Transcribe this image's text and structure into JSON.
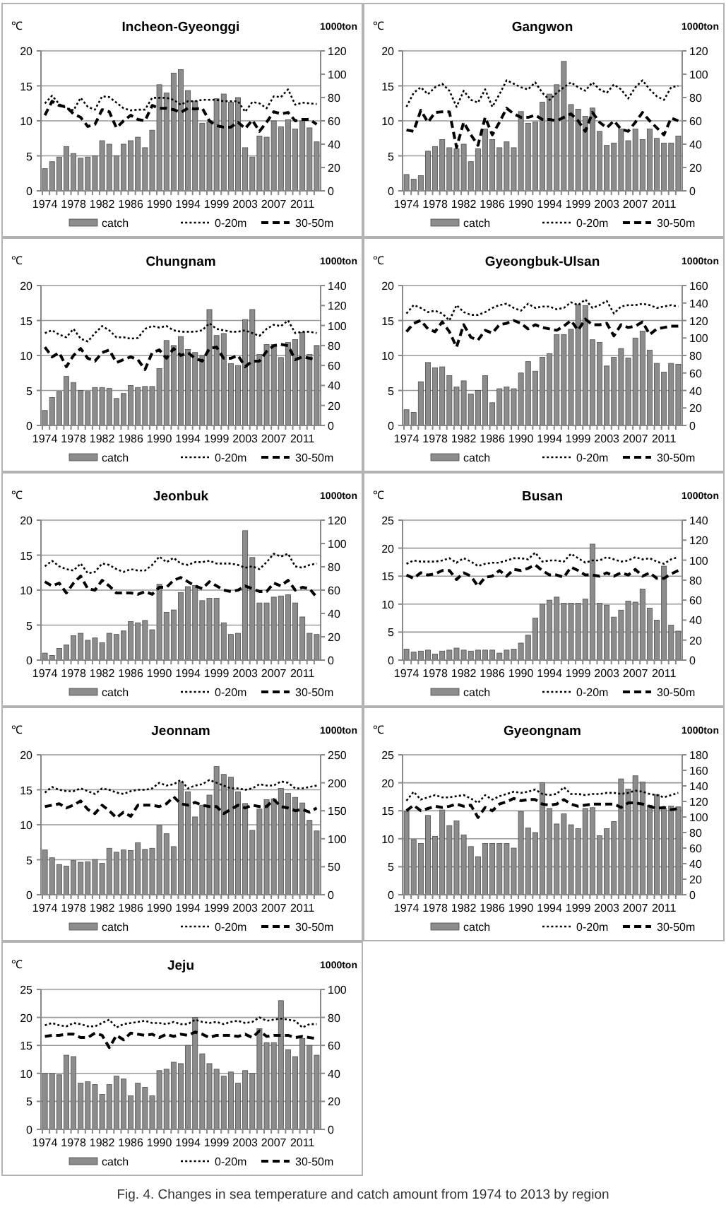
{
  "chart_data": [
    {
      "type": "bar",
      "title": "Incheon-Gyeonggi",
      "ylabel": "℃",
      "y2label": "1000ton",
      "categories": [
        "1974",
        null,
        null,
        null,
        "1978",
        null,
        null,
        null,
        "1982",
        null,
        null,
        null,
        "1986",
        null,
        null,
        null,
        "1990",
        null,
        null,
        null,
        "1994",
        null,
        null,
        null,
        "1999",
        null,
        null,
        null,
        "2003",
        null,
        null,
        null,
        "2007",
        null,
        null,
        null,
        "2011",
        null,
        null
      ],
      "ylim": [
        0,
        20
      ],
      "yticks": [
        0,
        5,
        10,
        15,
        20
      ],
      "y2lim": [
        0,
        120
      ],
      "y2ticks": [
        0,
        20,
        40,
        60,
        80,
        100,
        120
      ],
      "grid": "y",
      "legend": "bottom",
      "series": [
        {
          "name": "catch",
          "axis": "y2",
          "color": "#8c8c8c",
          "values": [
            19,
            25,
            29,
            38,
            32,
            28,
            29,
            30,
            43,
            40,
            30,
            40,
            43,
            46,
            37,
            52,
            91,
            84,
            101,
            104,
            86,
            77,
            58,
            59,
            79,
            83,
            76,
            80,
            37,
            29,
            47,
            46,
            60,
            55,
            61,
            53,
            60,
            54,
            42
          ]
        },
        {
          "name": "0-20m",
          "type": "line",
          "line_style": "dotted",
          "color": "#000000",
          "values": [
            12.5,
            13.6,
            12.4,
            11.8,
            11.5,
            13.3,
            12.0,
            11.6,
            13.5,
            13.4,
            12.6,
            11.8,
            11.5,
            11.6,
            11.6,
            13.3,
            13.3,
            13.3,
            13.0,
            12.3,
            12.8,
            12.8,
            13.0,
            13.0,
            13.0,
            12.8,
            12.8,
            12.8,
            11.3,
            12.7,
            12.5,
            11.8,
            13.5,
            13.4,
            14.5,
            12.3,
            12.6,
            12.5,
            12.4
          ]
        },
        {
          "name": "30-50m",
          "type": "line",
          "line_style": "dashed",
          "color": "#000000",
          "values": [
            10.8,
            12.8,
            12.2,
            12.0,
            11.0,
            10.5,
            9.2,
            9.5,
            11.6,
            11.3,
            9.0,
            10.0,
            10.8,
            10.2,
            10.0,
            12.2,
            11.8,
            11.8,
            11.6,
            11.2,
            11.8,
            11.7,
            11.8,
            10.0,
            9.3,
            9.1,
            9.1,
            9.8,
            8.9,
            10.1,
            8.5,
            9.8,
            11.3,
            11.0,
            11.2,
            10.0,
            10.2,
            10.2,
            9.5
          ]
        }
      ]
    },
    {
      "type": "bar",
      "title": "Gangwon",
      "ylabel": "℃",
      "y2label": "1000ton",
      "categories": [
        "1974",
        null,
        null,
        null,
        "1978",
        null,
        null,
        null,
        "1982",
        null,
        null,
        null,
        "1986",
        null,
        null,
        null,
        "1990",
        null,
        null,
        null,
        "1994",
        null,
        null,
        null,
        "1999",
        null,
        null,
        null,
        "2003",
        null,
        null,
        null,
        "2007",
        null,
        null,
        null,
        "2011",
        null,
        null
      ],
      "ylim": [
        0,
        20
      ],
      "yticks": [
        0,
        5,
        10,
        15,
        20
      ],
      "y2lim": [
        0,
        120
      ],
      "y2ticks": [
        0,
        20,
        40,
        60,
        80,
        100,
        120
      ],
      "grid": "y",
      "legend": "bottom",
      "series": [
        {
          "name": "catch",
          "axis": "y2",
          "color": "#8c8c8c",
          "values": [
            14,
            10,
            13,
            34,
            38,
            44,
            37,
            36,
            40,
            25,
            36,
            53,
            44,
            37,
            42,
            37,
            68,
            58,
            59,
            76,
            83,
            91,
            111,
            74,
            70,
            64,
            71,
            51,
            39,
            41,
            53,
            43,
            53,
            44,
            53,
            45,
            41,
            41,
            47
          ]
        },
        {
          "name": "0-20m",
          "type": "line",
          "line_style": "dotted",
          "color": "#000000",
          "values": [
            12.0,
            14.0,
            14.8,
            13.8,
            14.8,
            15.3,
            14.3,
            12.0,
            14.3,
            13.0,
            12.6,
            14.5,
            12.0,
            13.8,
            15.8,
            15.3,
            14.8,
            14.5,
            15.5,
            14.0,
            13.0,
            14.0,
            14.8,
            15.5,
            14.8,
            14.3,
            15.5,
            14.5,
            14.0,
            15.2,
            14.5,
            13.2,
            14.8,
            15.8,
            14.5,
            13.5,
            13.0,
            14.8,
            15.0
          ]
        },
        {
          "name": "30-50m",
          "type": "line",
          "line_style": "dashed",
          "color": "#000000",
          "values": [
            8.7,
            8.5,
            11.5,
            9.8,
            11.2,
            11.3,
            11.3,
            6.2,
            9.8,
            8.0,
            6.5,
            10.5,
            8.0,
            9.8,
            11.8,
            11.0,
            10.5,
            10.5,
            10.8,
            10.2,
            10.2,
            10.0,
            10.5,
            11.0,
            10.0,
            8.5,
            11.2,
            9.8,
            9.0,
            10.0,
            8.8,
            8.5,
            9.8,
            11.2,
            10.0,
            9.0,
            8.0,
            10.4,
            10.0
          ]
        }
      ]
    },
    {
      "type": "bar",
      "title": "Chungnam",
      "ylabel": "℃",
      "y2label": "1000ton",
      "categories": [
        "1974",
        null,
        null,
        null,
        "1978",
        null,
        null,
        null,
        "1982",
        null,
        null,
        null,
        "1986",
        null,
        null,
        null,
        "1990",
        null,
        null,
        null,
        "1994",
        null,
        null,
        null,
        "1999",
        null,
        null,
        null,
        "2003",
        null,
        null,
        null,
        "2007",
        null,
        null,
        null,
        "2011",
        null,
        null
      ],
      "ylim": [
        0,
        20
      ],
      "yticks": [
        0,
        5,
        10,
        15,
        20
      ],
      "y2lim": [
        0,
        140
      ],
      "y2ticks": [
        0,
        20,
        40,
        60,
        80,
        100,
        120,
        140
      ],
      "grid": "y",
      "legend": "bottom",
      "series": [
        {
          "name": "catch",
          "axis": "y2",
          "color": "#8c8c8c",
          "values": [
            15,
            28,
            34,
            49,
            43,
            35,
            34,
            38,
            38,
            37,
            27,
            32,
            40,
            38,
            39,
            39,
            57,
            85,
            80,
            89,
            76,
            73,
            70,
            116,
            90,
            92,
            62,
            60,
            106,
            116,
            71,
            81,
            81,
            68,
            83,
            86,
            93,
            71,
            80
          ]
        },
        {
          "name": "0-20m",
          "type": "line",
          "line_style": "dotted",
          "color": "#000000",
          "values": [
            13.2,
            13.6,
            13.0,
            12.6,
            13.8,
            12.4,
            12.0,
            13.2,
            14.2,
            13.6,
            12.6,
            12.6,
            12.4,
            12.5,
            13.8,
            14.2,
            14.0,
            14.2,
            13.6,
            13.4,
            13.4,
            13.4,
            13.6,
            14.6,
            13.8,
            13.6,
            13.4,
            13.4,
            13.6,
            13.2,
            12.8,
            13.8,
            14.4,
            14.2,
            15.0,
            13.2,
            13.4,
            13.4,
            13.2
          ]
        },
        {
          "name": "30-50m",
          "type": "line",
          "line_style": "dashed",
          "color": "#000000",
          "values": [
            11.2,
            9.8,
            10.4,
            8.4,
            10.0,
            11.0,
            9.6,
            9.2,
            10.4,
            10.8,
            9.0,
            9.4,
            9.8,
            9.4,
            8.0,
            10.4,
            10.8,
            9.6,
            11.0,
            10.0,
            10.4,
            9.6,
            9.2,
            11.0,
            11.2,
            9.6,
            9.6,
            10.0,
            8.4,
            9.2,
            9.2,
            10.6,
            11.4,
            11.6,
            11.4,
            9.4,
            9.8,
            9.6,
            9.4
          ]
        }
      ]
    },
    {
      "type": "bar",
      "title": "Gyeongbuk-Ulsan",
      "ylabel": "℃",
      "y2label": "1000ton",
      "categories": [
        "1974",
        null,
        null,
        null,
        "1978",
        null,
        null,
        null,
        "1982",
        null,
        null,
        null,
        "1986",
        null,
        null,
        null,
        "1990",
        null,
        null,
        null,
        "1994",
        null,
        null,
        null,
        "1999",
        null,
        null,
        null,
        "2003",
        null,
        null,
        null,
        "2007",
        null,
        null,
        null,
        "2011",
        null,
        null
      ],
      "ylim": [
        0,
        20
      ],
      "yticks": [
        0,
        5,
        10,
        15,
        20
      ],
      "y2lim": [
        0,
        160
      ],
      "y2ticks": [
        0,
        20,
        40,
        60,
        80,
        100,
        120,
        140,
        160
      ],
      "grid": "y",
      "legend": "bottom",
      "series": [
        {
          "name": "catch",
          "axis": "y2",
          "color": "#8c8c8c",
          "values": [
            18,
            15,
            50,
            72,
            66,
            67,
            57,
            44,
            51,
            36,
            40,
            57,
            26,
            42,
            44,
            42,
            60,
            73,
            62,
            78,
            82,
            104,
            104,
            110,
            138,
            137,
            98,
            95,
            68,
            78,
            88,
            77,
            100,
            108,
            86,
            71,
            61,
            71,
            70
          ]
        },
        {
          "name": "0-20m",
          "type": "line",
          "line_style": "dotted",
          "color": "#000000",
          "values": [
            16.0,
            17.2,
            16.8,
            16.2,
            16.4,
            16.0,
            15.0,
            17.2,
            16.2,
            15.8,
            15.8,
            16.2,
            16.8,
            17.2,
            17.4,
            16.8,
            16.4,
            17.4,
            16.8,
            17.0,
            17.0,
            16.6,
            16.8,
            17.6,
            17.2,
            18.0,
            16.8,
            17.2,
            17.8,
            16.0,
            17.0,
            17.2,
            17.2,
            17.4,
            17.2,
            16.8,
            17.0,
            17.2,
            17.0
          ]
        },
        {
          "name": "30-50m",
          "type": "line",
          "line_style": "dashed",
          "color": "#000000",
          "values": [
            13.4,
            14.6,
            15.0,
            13.8,
            13.4,
            14.8,
            13.4,
            11.2,
            14.4,
            12.6,
            12.2,
            13.6,
            13.2,
            14.4,
            14.6,
            15.0,
            14.6,
            13.8,
            14.4,
            14.0,
            13.8,
            13.6,
            14.2,
            15.0,
            13.6,
            15.2,
            14.4,
            14.4,
            14.6,
            12.8,
            14.4,
            14.0,
            14.2,
            14.8,
            13.0,
            13.8,
            14.0,
            14.2,
            14.2
          ]
        }
      ]
    },
    {
      "type": "bar",
      "title": "Jeonbuk",
      "ylabel": "℃",
      "y2label": "1000ton",
      "categories": [
        "1974",
        null,
        null,
        null,
        "1978",
        null,
        null,
        null,
        "1982",
        null,
        null,
        null,
        "1986",
        null,
        null,
        null,
        "1990",
        null,
        null,
        null,
        "1994",
        null,
        null,
        null,
        "1999",
        null,
        null,
        null,
        "2003",
        null,
        null,
        null,
        "2007",
        null,
        null,
        null,
        "2011",
        null,
        null
      ],
      "ylim": [
        0,
        20
      ],
      "yticks": [
        0,
        5,
        10,
        15,
        20
      ],
      "y2lim": [
        0,
        120
      ],
      "y2ticks": [
        0,
        20,
        40,
        60,
        80,
        100,
        120
      ],
      "grid": "y",
      "legend": "bottom",
      "series": [
        {
          "name": "catch",
          "axis": "y2",
          "color": "#8c8c8c",
          "values": [
            6,
            4,
            10,
            13,
            21,
            23,
            17,
            19,
            15,
            23,
            22,
            25,
            33,
            32,
            34,
            26,
            65,
            41,
            43,
            58,
            63,
            64,
            51,
            53,
            53,
            32,
            22,
            23,
            111,
            88,
            49,
            49,
            54,
            55,
            56,
            49,
            37,
            23,
            22
          ]
        },
        {
          "name": "0-20m",
          "type": "line",
          "line_style": "dotted",
          "color": "#000000",
          "values": [
            13.4,
            14.2,
            13.4,
            13.0,
            12.8,
            13.8,
            12.4,
            12.6,
            13.8,
            13.6,
            13.0,
            12.6,
            13.0,
            12.8,
            12.8,
            13.6,
            14.8,
            14.0,
            14.6,
            13.8,
            13.6,
            14.0,
            14.0,
            14.2,
            13.8,
            13.8,
            13.8,
            13.6,
            13.2,
            13.4,
            13.0,
            14.0,
            15.2,
            14.8,
            15.2,
            13.4,
            13.2,
            13.6,
            13.8
          ]
        },
        {
          "name": "30-50m",
          "type": "line",
          "line_style": "dashed",
          "color": "#000000",
          "values": [
            11.2,
            10.6,
            11.0,
            9.6,
            11.0,
            12.0,
            10.2,
            10.0,
            11.4,
            10.6,
            9.6,
            9.6,
            9.6,
            9.4,
            9.8,
            9.4,
            10.4,
            10.4,
            11.4,
            11.8,
            11.2,
            10.6,
            10.2,
            11.2,
            10.6,
            10.0,
            9.8,
            10.0,
            10.6,
            10.2,
            9.8,
            9.8,
            11.0,
            10.6,
            11.4,
            10.0,
            10.4,
            10.2,
            9.0
          ]
        }
      ]
    },
    {
      "type": "bar",
      "title": "Busan",
      "ylabel": "℃",
      "y2label": "1000ton",
      "categories": [
        "1974",
        null,
        null,
        null,
        "1978",
        null,
        null,
        null,
        "1982",
        null,
        null,
        null,
        "1986",
        null,
        null,
        null,
        "1990",
        null,
        null,
        null,
        "1994",
        null,
        null,
        null,
        "1999",
        null,
        null,
        null,
        "2003",
        null,
        null,
        null,
        "2007",
        null,
        null,
        null,
        "2011",
        null,
        null
      ],
      "ylim": [
        0,
        25
      ],
      "yticks": [
        0,
        5,
        10,
        15,
        20,
        25
      ],
      "y2lim": [
        0,
        140
      ],
      "y2ticks": [
        0,
        20,
        40,
        60,
        80,
        100,
        120,
        140
      ],
      "grid": "y",
      "legend": "bottom",
      "series": [
        {
          "name": "catch",
          "axis": "y2",
          "color": "#8c8c8c",
          "values": [
            11,
            8,
            9,
            10,
            6,
            9,
            10,
            12,
            10,
            9,
            10,
            10,
            10,
            7,
            10,
            11,
            17,
            25,
            42,
            56,
            60,
            63,
            57,
            57,
            57,
            61,
            116,
            57,
            55,
            43,
            50,
            59,
            58,
            71,
            52,
            40,
            94,
            35,
            29
          ]
        },
        {
          "name": "0-20m",
          "type": "line",
          "line_style": "dotted",
          "color": "#000000",
          "values": [
            17.2,
            17.8,
            17.6,
            17.6,
            17.6,
            17.8,
            18.2,
            17.4,
            18.2,
            17.6,
            16.8,
            17.2,
            17.4,
            17.4,
            17.8,
            18.2,
            18.2,
            18.0,
            19.2,
            17.6,
            17.8,
            17.8,
            17.6,
            19.0,
            18.2,
            17.4,
            17.8,
            17.8,
            18.4,
            18.0,
            17.6,
            17.8,
            18.4,
            18.0,
            18.2,
            17.6,
            17.2,
            18.0,
            18.4
          ]
        },
        {
          "name": "30-50m",
          "type": "line",
          "line_style": "dashed",
          "color": "#000000",
          "values": [
            15.2,
            14.6,
            15.6,
            15.2,
            15.4,
            16.0,
            16.0,
            14.4,
            15.6,
            15.0,
            13.2,
            14.8,
            15.0,
            16.0,
            15.0,
            16.2,
            16.0,
            16.4,
            17.0,
            16.0,
            15.2,
            15.2,
            14.8,
            16.6,
            16.0,
            15.2,
            15.2,
            15.0,
            15.6,
            15.0,
            15.6,
            15.2,
            16.2,
            15.0,
            15.6,
            14.6,
            14.6,
            15.4,
            16.0
          ]
        }
      ]
    },
    {
      "type": "bar",
      "title": "Jeonnam",
      "ylabel": "℃",
      "y2label": "1000ton",
      "categories": [
        "1974",
        null,
        null,
        null,
        "1978",
        null,
        null,
        null,
        "1982",
        null,
        null,
        null,
        "1986",
        null,
        null,
        null,
        "1990",
        null,
        null,
        null,
        "1994",
        null,
        null,
        null,
        "1999",
        null,
        null,
        null,
        "2003",
        null,
        null,
        null,
        "2007",
        null,
        null,
        null,
        "2011",
        null,
        null
      ],
      "ylim": [
        0,
        20
      ],
      "yticks": [
        0,
        5,
        10,
        15,
        20
      ],
      "y2lim": [
        0,
        250
      ],
      "y2ticks": [
        0,
        50,
        100,
        150,
        200,
        250
      ],
      "grid": "y",
      "legend": "bottom",
      "series": [
        {
          "name": "catch",
          "axis": "y2",
          "color": "#8c8c8c",
          "values": [
            80,
            66,
            54,
            51,
            61,
            58,
            59,
            63,
            56,
            83,
            76,
            80,
            79,
            93,
            81,
            83,
            124,
            109,
            86,
            201,
            184,
            139,
            160,
            178,
            229,
            215,
            210,
            184,
            163,
            115,
            153,
            170,
            171,
            190,
            181,
            174,
            164,
            133,
            114
          ]
        },
        {
          "name": "0-20m",
          "type": "line",
          "line_style": "dotted",
          "color": "#000000",
          "values": [
            14.6,
            15.4,
            15.0,
            14.8,
            14.8,
            15.2,
            14.8,
            14.4,
            15.2,
            15.0,
            14.6,
            14.4,
            14.8,
            15.0,
            15.0,
            15.2,
            16.0,
            15.6,
            15.8,
            16.4,
            15.2,
            15.6,
            15.8,
            16.4,
            16.0,
            15.6,
            15.2,
            15.2,
            15.0,
            15.2,
            15.8,
            15.6,
            15.6,
            16.2,
            16.0,
            15.2,
            15.2,
            15.4,
            15.6
          ]
        },
        {
          "name": "30-50m",
          "type": "line",
          "line_style": "dashed",
          "color": "#000000",
          "values": [
            12.6,
            12.8,
            13.0,
            12.4,
            12.8,
            13.4,
            12.2,
            11.6,
            12.8,
            12.0,
            11.0,
            11.8,
            11.2,
            12.8,
            12.8,
            12.8,
            12.6,
            13.0,
            14.0,
            13.0,
            12.8,
            13.2,
            12.8,
            12.6,
            12.6,
            11.6,
            12.2,
            12.8,
            12.4,
            12.8,
            12.6,
            12.6,
            13.6,
            12.6,
            12.4,
            12.0,
            12.2,
            11.8,
            12.4
          ]
        }
      ]
    },
    {
      "type": "bar",
      "title": "Gyeongnam",
      "ylabel": "℃",
      "y2label": "1000ton",
      "categories": [
        "1974",
        null,
        null,
        null,
        "1978",
        null,
        null,
        null,
        "1982",
        null,
        null,
        null,
        "1986",
        null,
        null,
        null,
        "1990",
        null,
        null,
        null,
        "1994",
        null,
        null,
        null,
        "1999",
        null,
        null,
        null,
        "2003",
        null,
        null,
        null,
        "2007",
        null,
        null,
        null,
        "2011",
        null,
        null
      ],
      "ylim": [
        0,
        25
      ],
      "yticks": [
        0,
        5,
        10,
        15,
        20,
        25
      ],
      "y2lim": [
        0,
        180
      ],
      "y2ticks": [
        0,
        20,
        40,
        60,
        80,
        100,
        120,
        140,
        160,
        180
      ],
      "grid": "y",
      "legend": "bottom",
      "series": [
        {
          "name": "catch",
          "axis": "y2",
          "color": "#8c8c8c",
          "values": [
            107,
            71,
            66,
            102,
            75,
            109,
            89,
            95,
            77,
            62,
            49,
            66,
            66,
            66,
            66,
            60,
            107,
            86,
            80,
            144,
            111,
            91,
            104,
            90,
            85,
            111,
            112,
            76,
            85,
            94,
            149,
            136,
            153,
            145,
            115,
            129,
            111,
            114,
            113
          ]
        },
        {
          "name": "0-20m",
          "type": "line",
          "line_style": "dotted",
          "color": "#000000",
          "values": [
            16.8,
            18.4,
            17.0,
            17.4,
            17.8,
            17.4,
            17.4,
            17.6,
            17.8,
            17.2,
            16.4,
            17.8,
            17.0,
            17.6,
            18.0,
            18.4,
            18.2,
            18.4,
            18.8,
            18.0,
            17.8,
            18.0,
            19.2,
            18.0,
            18.0,
            17.8,
            18.0,
            18.0,
            18.2,
            18.2,
            18.0,
            18.2,
            18.6,
            18.4,
            18.0,
            17.8,
            17.4,
            17.8,
            18.2
          ]
        },
        {
          "name": "30-50m",
          "type": "line",
          "line_style": "dashed",
          "color": "#000000",
          "values": [
            15.0,
            16.0,
            15.0,
            15.4,
            15.8,
            15.6,
            15.8,
            16.2,
            15.8,
            16.0,
            13.8,
            15.6,
            15.0,
            16.2,
            16.6,
            17.2,
            16.8,
            17.0,
            17.0,
            16.2,
            16.0,
            16.2,
            17.0,
            16.2,
            15.8,
            16.0,
            16.2,
            16.2,
            16.2,
            16.2,
            15.6,
            16.4,
            16.4,
            16.2,
            15.8,
            15.4,
            15.6,
            15.2,
            15.4
          ]
        }
      ]
    },
    {
      "type": "bar",
      "title": "Jeju",
      "ylabel": "℃",
      "y2label": "1000ton",
      "categories": [
        "1974",
        null,
        null,
        null,
        "1978",
        null,
        null,
        null,
        "1982",
        null,
        null,
        null,
        "1986",
        null,
        null,
        null,
        "1990",
        null,
        null,
        null,
        "1994",
        null,
        null,
        null,
        "1999",
        null,
        null,
        null,
        "2003",
        null,
        null,
        null,
        "2007",
        null,
        null,
        null,
        "2011",
        null,
        null
      ],
      "ylim": [
        0,
        25
      ],
      "yticks": [
        0,
        5,
        10,
        15,
        20,
        25
      ],
      "y2lim": [
        0,
        100
      ],
      "y2ticks": [
        0,
        20,
        40,
        60,
        80,
        100
      ],
      "grid": "y",
      "legend": "bottom",
      "annotations": [
        "Fig. 4. Changes in sea temperature and catch amount from 1974 to 2013 by region"
      ],
      "series": [
        {
          "name": "catch",
          "axis": "y2",
          "color": "#8c8c8c",
          "values": [
            40,
            40,
            39,
            53,
            52,
            33,
            34,
            32,
            25,
            32,
            38,
            36,
            24,
            33,
            30,
            24,
            42,
            43,
            48,
            47,
            60,
            80,
            54,
            47,
            43,
            38,
            41,
            33,
            42,
            40,
            72,
            62,
            62,
            92,
            57,
            52,
            65,
            60,
            53
          ]
        },
        {
          "name": "0-20m",
          "type": "line",
          "line_style": "dotted",
          "color": "#000000",
          "values": [
            18.6,
            19.0,
            18.6,
            18.4,
            19.0,
            18.8,
            18.4,
            18.4,
            19.0,
            19.6,
            18.2,
            18.8,
            19.0,
            19.2,
            19.4,
            19.0,
            19.0,
            18.8,
            19.2,
            18.8,
            18.8,
            19.6,
            19.2,
            19.0,
            19.2,
            18.8,
            19.2,
            19.4,
            19.0,
            19.2,
            20.0,
            19.4,
            19.6,
            19.8,
            19.6,
            19.4,
            18.2,
            18.8,
            18.8
          ]
        },
        {
          "name": "30-50m",
          "type": "line",
          "line_style": "dashed",
          "color": "#000000",
          "values": [
            16.6,
            16.8,
            16.8,
            17.0,
            17.0,
            16.4,
            16.4,
            17.2,
            16.8,
            14.6,
            16.8,
            16.0,
            17.2,
            17.0,
            16.8,
            17.0,
            16.4,
            17.0,
            16.6,
            17.0,
            16.8,
            17.4,
            17.0,
            16.4,
            16.8,
            16.8,
            16.8,
            16.6,
            17.0,
            16.4,
            17.6,
            16.6,
            16.8,
            16.8,
            16.8,
            16.4,
            16.6,
            16.4,
            16.2
          ]
        }
      ]
    }
  ]
}
